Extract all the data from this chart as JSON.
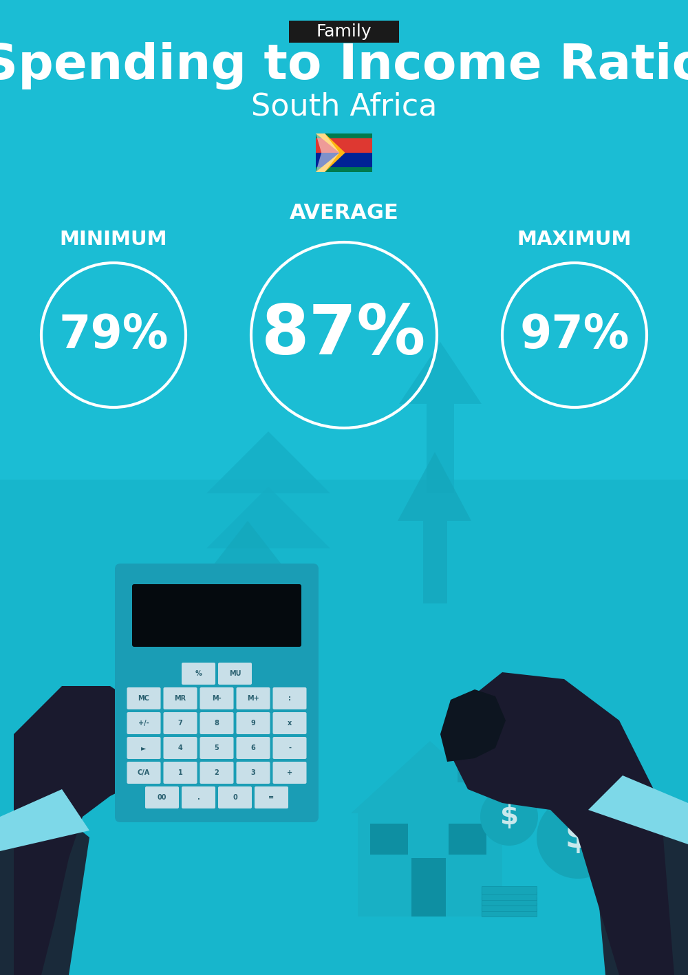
{
  "bg_color": "#1bbdd4",
  "title_tag": "Family",
  "title_tag_bg": "#1a1a1a",
  "title_tag_color": "#ffffff",
  "title_main": "Spending to Income Ratio",
  "title_sub": "South Africa",
  "min_label": "MINIMUM",
  "avg_label": "AVERAGE",
  "max_label": "MAXIMUM",
  "min_value": "79%",
  "avg_value": "87%",
  "max_value": "97%",
  "circle_color": "#ffffff",
  "text_color": "#ffffff",
  "font_family": "DejaVu Sans",
  "arrow_color": "#15adc4",
  "illustration_dark": "#0e9ab0",
  "hand_color": "#1a1a2e",
  "calc_body": "#1e9db5",
  "calc_screen": "#0a0a0a",
  "house_color": "#1ab0c8",
  "money_color": "#15a8be"
}
